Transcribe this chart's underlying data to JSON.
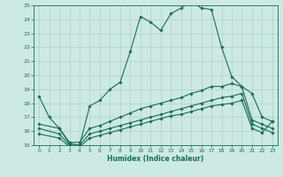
{
  "xlabel": "Humidex (Indice chaleur)",
  "xlim": [
    -0.5,
    23.5
  ],
  "ylim": [
    15,
    25
  ],
  "xticks": [
    0,
    1,
    2,
    3,
    4,
    5,
    6,
    7,
    8,
    9,
    10,
    11,
    12,
    13,
    14,
    15,
    16,
    17,
    18,
    19,
    20,
    21,
    22,
    23
  ],
  "yticks": [
    15,
    16,
    17,
    18,
    19,
    20,
    21,
    22,
    23,
    24,
    25
  ],
  "bg_color": "#cce9e4",
  "line_color": "#1a6b5a",
  "grid_color": "#b0d0cc",
  "series1_x": [
    0,
    1,
    2,
    3,
    4,
    5,
    6,
    7,
    8,
    9,
    10,
    11,
    12,
    13,
    14,
    15,
    16,
    17,
    18,
    19,
    20,
    21,
    22,
    23
  ],
  "series1_y": [
    18.5,
    17.0,
    16.2,
    15.1,
    15.0,
    17.8,
    18.2,
    19.0,
    19.5,
    21.7,
    24.2,
    23.8,
    23.2,
    24.4,
    24.8,
    25.3,
    24.8,
    24.7,
    22.0,
    19.9,
    19.2,
    18.7,
    17.0,
    16.7
  ],
  "series2_x": [
    0,
    2,
    3,
    4,
    5,
    6,
    7,
    8,
    9,
    10,
    11,
    12,
    13,
    14,
    15,
    16,
    17,
    18,
    19,
    20,
    21,
    22,
    23
  ],
  "series2_y": [
    16.5,
    16.2,
    15.2,
    15.2,
    16.2,
    16.4,
    16.7,
    17.0,
    17.3,
    17.6,
    17.8,
    18.0,
    18.2,
    18.4,
    18.7,
    18.9,
    19.2,
    19.2,
    19.4,
    19.2,
    16.8,
    16.5,
    16.2
  ],
  "series3_x": [
    0,
    2,
    3,
    4,
    5,
    6,
    7,
    8,
    9,
    10,
    11,
    12,
    13,
    14,
    15,
    16,
    17,
    18,
    19,
    20,
    21,
    22,
    23
  ],
  "series3_y": [
    16.2,
    15.8,
    15.0,
    15.0,
    15.8,
    16.0,
    16.2,
    16.4,
    16.6,
    16.8,
    17.0,
    17.2,
    17.4,
    17.6,
    17.8,
    18.0,
    18.2,
    18.4,
    18.5,
    18.7,
    16.5,
    16.2,
    15.9
  ],
  "series4_x": [
    0,
    2,
    3,
    4,
    5,
    6,
    7,
    8,
    9,
    10,
    11,
    12,
    13,
    14,
    15,
    16,
    17,
    18,
    19,
    20,
    21,
    22,
    23
  ],
  "series4_y": [
    15.8,
    15.5,
    14.9,
    14.9,
    15.5,
    15.7,
    15.9,
    16.1,
    16.3,
    16.5,
    16.7,
    16.9,
    17.1,
    17.2,
    17.4,
    17.6,
    17.8,
    17.9,
    18.0,
    18.2,
    16.2,
    15.9,
    16.7
  ]
}
